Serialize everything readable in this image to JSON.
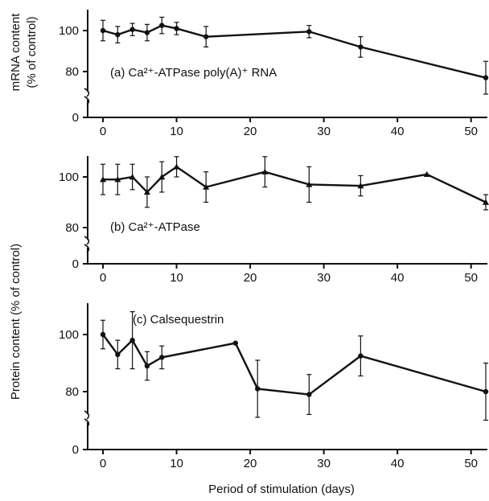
{
  "figure": {
    "ylabel_top_line1": "mRNA content",
    "ylabel_top_line2": "(% of control)",
    "ylabel_bottom": "Protein content (% of control)",
    "xlabel": "Period of stimulation (days)"
  },
  "chart_data": [
    {
      "type": "line",
      "panel": "a",
      "annotation": "(a) Ca²⁺-ATPase poly(A)⁺ RNA",
      "ylabel": "mRNA content (% of control)",
      "xlim": [
        0,
        52
      ],
      "ylim_broken": [
        0,
        80,
        110
      ],
      "yticks": [
        0,
        80,
        100
      ],
      "xticks": [
        0,
        10,
        20,
        30,
        40,
        50
      ],
      "marker": "circle",
      "series": [
        {
          "x": [
            0,
            2,
            4,
            6,
            8,
            10,
            14,
            28,
            35,
            52
          ],
          "y": [
            100,
            98,
            100.5,
            99,
            102.5,
            101,
            97,
            99.5,
            92,
            77
          ],
          "err": [
            5,
            4,
            3,
            4,
            4,
            3,
            5,
            3,
            5,
            8
          ]
        }
      ]
    },
    {
      "type": "line",
      "panel": "b",
      "annotation": "(b) Ca²⁺-ATPase",
      "xlim": [
        0,
        52
      ],
      "ylim_broken": [
        0,
        80,
        110
      ],
      "yticks": [
        0,
        80,
        100
      ],
      "xticks": [
        0,
        10,
        20,
        30,
        40,
        50
      ],
      "marker": "triangle",
      "series": [
        {
          "x": [
            0,
            2,
            4,
            6,
            8,
            10,
            14,
            22,
            28,
            35,
            44,
            52
          ],
          "y": [
            99,
            99,
            100,
            94,
            100,
            104,
            96,
            102,
            97,
            96.5,
            101,
            90
          ],
          "err": [
            6,
            6,
            5,
            6,
            6,
            4,
            6,
            6,
            7,
            4,
            0,
            3
          ]
        }
      ]
    },
    {
      "type": "line",
      "panel": "c",
      "annotation": "(c) Calsequestrin",
      "ylabel": "Protein content (% of control)",
      "xlabel": "Period of stimulation (days)",
      "xlim": [
        0,
        52
      ],
      "ylim_broken": [
        0,
        70,
        110
      ],
      "yticks": [
        0,
        80,
        100
      ],
      "xticks": [
        0,
        10,
        20,
        30,
        40,
        50
      ],
      "marker": "circle",
      "series": [
        {
          "x": [
            0,
            2,
            4,
            6,
            8,
            18,
            21,
            28,
            35,
            52
          ],
          "y": [
            100,
            93,
            98,
            89,
            92,
            97,
            81,
            79,
            92.5,
            80
          ],
          "err": [
            5,
            5,
            10,
            5,
            4,
            0,
            10,
            7,
            7,
            10
          ]
        }
      ]
    }
  ]
}
